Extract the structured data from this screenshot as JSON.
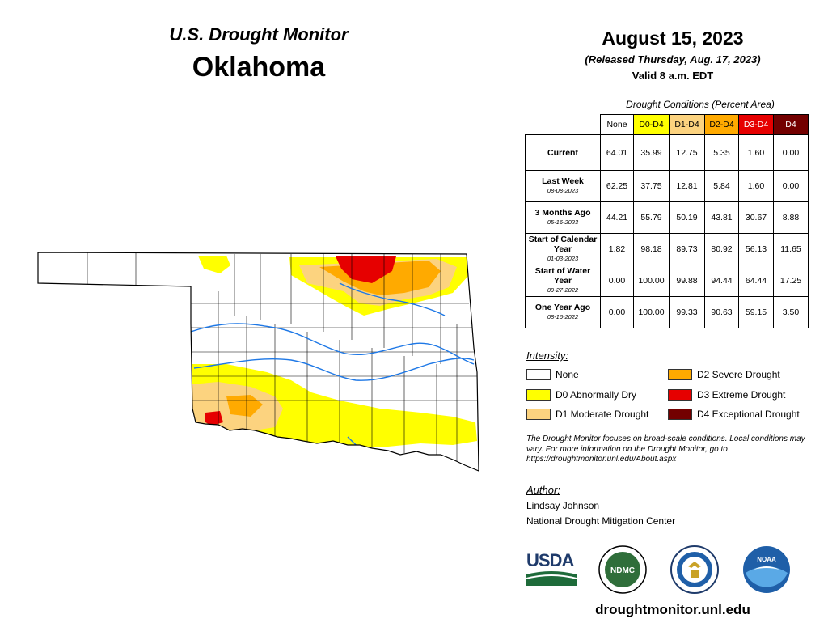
{
  "header": {
    "title": "U.S. Drought Monitor",
    "state": "Oklahoma",
    "date": "August 15, 2023",
    "released": "(Released Thursday, Aug. 17, 2023)",
    "valid": "Valid 8 a.m. EDT"
  },
  "table": {
    "caption": "Drought Conditions (Percent Area)",
    "columns": [
      {
        "label": "None",
        "color": "#ffffff",
        "text_color": "#000000"
      },
      {
        "label": "D0-D4",
        "color": "#ffff00",
        "text_color": "#000000"
      },
      {
        "label": "D1-D4",
        "color": "#fcd37f",
        "text_color": "#000000"
      },
      {
        "label": "D2-D4",
        "color": "#ffaa00",
        "text_color": "#000000"
      },
      {
        "label": "D3-D4",
        "color": "#e60000",
        "text_color": "#ffffff"
      },
      {
        "label": "D4",
        "color": "#730000",
        "text_color": "#ffffff"
      }
    ],
    "rows": [
      {
        "label": "Current",
        "sub": "",
        "values": [
          "64.01",
          "35.99",
          "12.75",
          "5.35",
          "1.60",
          "0.00"
        ]
      },
      {
        "label": "Last Week",
        "sub": "08-08-2023",
        "values": [
          "62.25",
          "37.75",
          "12.81",
          "5.84",
          "1.60",
          "0.00"
        ]
      },
      {
        "label": "3 Months Ago",
        "sub": "05-16-2023",
        "values": [
          "44.21",
          "55.79",
          "50.19",
          "43.81",
          "30.67",
          "8.88"
        ]
      },
      {
        "label": "Start of Calendar Year",
        "sub": "01-03-2023",
        "values": [
          "1.82",
          "98.18",
          "89.73",
          "80.92",
          "56.13",
          "11.65"
        ]
      },
      {
        "label": "Start of Water Year",
        "sub": "09-27-2022",
        "values": [
          "0.00",
          "100.00",
          "99.88",
          "94.44",
          "64.44",
          "17.25"
        ]
      },
      {
        "label": "One Year Ago",
        "sub": "08-16-2022",
        "values": [
          "0.00",
          "100.00",
          "99.33",
          "90.63",
          "59.15",
          "3.50"
        ]
      }
    ]
  },
  "legend": {
    "title": "Intensity:",
    "items": [
      {
        "label": "None",
        "color": "#ffffff"
      },
      {
        "label": "D0 Abnormally Dry",
        "color": "#ffff00"
      },
      {
        "label": "D1 Moderate Drought",
        "color": "#fcd37f"
      },
      {
        "label": "D2 Severe Drought",
        "color": "#ffaa00"
      },
      {
        "label": "D3 Extreme Drought",
        "color": "#e60000"
      },
      {
        "label": "D4 Exceptional Drought",
        "color": "#730000"
      }
    ]
  },
  "disclaimer": "The Drought Monitor focuses on broad-scale conditions. Local conditions may vary. For more information on the Drought Monitor, go to https://droughtmonitor.unl.edu/About.aspx",
  "author": {
    "label": "Author:",
    "name": "Lindsay Johnson",
    "org": "National Drought Mitigation Center"
  },
  "logos": {
    "usda": "USDA",
    "ndmc": "NDMC",
    "noaa": "NOAA",
    "commerce": "commerce-seal-icon"
  },
  "website": "droughtmonitor.unl.edu"
}
